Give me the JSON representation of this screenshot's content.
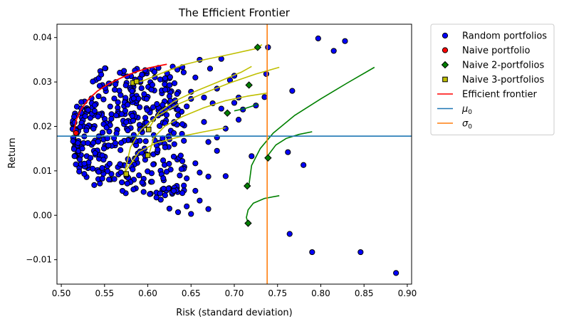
{
  "chart_data": {
    "type": "scatter",
    "title": "The Efficient Frontier",
    "xlabel": "Risk (standard deviation)",
    "ylabel": "Return",
    "xlim": [
      0.495,
      0.905
    ],
    "ylim": [
      -0.0155,
      0.043
    ],
    "xticks": [
      0.5,
      0.55,
      0.6,
      0.65,
      0.7,
      0.75,
      0.8,
      0.85,
      0.9
    ],
    "xtick_labels": [
      "0.50",
      "0.55",
      "0.60",
      "0.65",
      "0.70",
      "0.75",
      "0.80",
      "0.85",
      "0.90"
    ],
    "yticks": [
      -0.01,
      0.0,
      0.01,
      0.02,
      0.03,
      0.04
    ],
    "ytick_labels": [
      "−0.01",
      "0.00",
      "0.01",
      "0.02",
      "0.03",
      "0.04"
    ],
    "grid": false,
    "legend_position": "outside-top-right",
    "legend": [
      {
        "label": "Random portfolios",
        "kind": "circle",
        "color": "#0000ff"
      },
      {
        "label": "Naive portfolio",
        "kind": "circle",
        "color": "#ff0000"
      },
      {
        "label": "Naive 2-portfolios",
        "kind": "diamond",
        "color": "#008000"
      },
      {
        "label": "Naive 3-portfolios",
        "kind": "square",
        "color": "#bfbf00"
      },
      {
        "label": "Efficient frontier",
        "kind": "line",
        "color": "#ff0000"
      },
      {
        "label": "μ",
        "sub": "0",
        "kind": "line",
        "color": "#1f77b4"
      },
      {
        "label": "σ",
        "sub": "0",
        "kind": "line",
        "color": "#ff7f0e"
      }
    ],
    "mu0": 0.0178,
    "sigma0": 0.738,
    "colors": {
      "random": "#0000ff",
      "naive": "#ff0000",
      "naive2": "#008000",
      "naive3": "#bfbf00",
      "frontier": "#ff0000",
      "mu0": "#1f77b4",
      "sigma0": "#ff7f0e"
    },
    "random_portfolios": {
      "x": [
        0.797,
        0.815,
        0.828,
        0.739,
        0.767,
        0.78,
        0.764,
        0.79,
        0.846,
        0.887,
        0.762,
        0.737,
        0.725,
        0.735,
        0.705,
        0.695,
        0.7,
        0.685,
        0.672,
        0.68,
        0.66,
        0.655,
        0.665,
        0.7,
        0.71,
        0.69,
        0.705,
        0.72,
        0.68,
        0.67,
        0.68,
        0.69,
        0.67,
        0.655,
        0.66,
        0.645,
        0.64,
        0.63,
        0.62,
        0.625,
        0.63,
        0.64,
        0.635,
        0.645,
        0.65,
        0.65,
        0.675,
        0.685,
        0.665,
        0.655,
        0.64,
        0.66,
        0.67,
        0.645,
        0.65,
        0.635,
        0.625,
        0.615,
        0.61,
        0.62,
        0.63
      ],
      "y": [
        0.0398,
        0.037,
        0.0392,
        0.0378,
        0.028,
        0.0113,
        -0.0042,
        -0.0083,
        -0.0083,
        -0.013,
        0.0142,
        0.0318,
        0.0247,
        0.0266,
        0.0265,
        0.0304,
        0.0314,
        0.0352,
        0.033,
        0.0285,
        0.035,
        0.031,
        0.0265,
        0.0253,
        0.0238,
        0.0195,
        0.0215,
        0.0133,
        0.0175,
        0.0165,
        0.0145,
        0.0088,
        0.0087,
        0.0117,
        0.0096,
        0.0083,
        0.0122,
        0.0132,
        0.0153,
        0.0171,
        0.0185,
        0.0205,
        0.0225,
        0.0245,
        0.0278,
        0.0262,
        0.0252,
        0.024,
        0.021,
        0.0055,
        0.005,
        0.0033,
        0.0014,
        0.002,
        0.0003,
        0.0007,
        0.0015,
        0.0035,
        0.004,
        0.0045,
        0.0055
      ]
    },
    "naive_portfolio": {
      "x": 0.517,
      "y": 0.0185
    },
    "naive_2_portfolios": {
      "x": [
        0.727,
        0.717,
        0.692,
        0.739,
        0.715,
        0.716
      ],
      "y": [
        0.0378,
        0.0293,
        0.023,
        0.0129,
        0.0066,
        -0.0018
      ]
    },
    "naive_3_portfolios": {
      "x": [
        0.583,
        0.587,
        0.575,
        0.6,
        0.601
      ],
      "y": [
        0.0298,
        0.0301,
        0.0093,
        0.0135,
        0.0193
      ]
    },
    "efficient_frontier": {
      "x": [
        0.514,
        0.518,
        0.524,
        0.532,
        0.542,
        0.555,
        0.57,
        0.585,
        0.6,
        0.612,
        0.622
      ],
      "y": [
        0.0185,
        0.0218,
        0.0242,
        0.0262,
        0.028,
        0.0296,
        0.031,
        0.0322,
        0.0331,
        0.0336,
        0.034
      ]
    },
    "naive_2_frontiers": [
      {
        "x": [
          0.7,
          0.705,
          0.712,
          0.72,
          0.727
        ],
        "y": [
          0.0235,
          0.0237,
          0.024,
          0.0245,
          0.025
        ]
      },
      {
        "x": [
          0.716,
          0.714,
          0.716,
          0.722,
          0.735,
          0.752
        ],
        "y": [
          -0.0018,
          -0.0005,
          0.0012,
          0.0027,
          0.0038,
          0.0044
        ]
      },
      {
        "x": [
          0.717,
          0.72,
          0.73,
          0.745,
          0.77,
          0.8,
          0.83,
          0.862
        ],
        "y": [
          0.0068,
          0.0112,
          0.015,
          0.0185,
          0.0225,
          0.0262,
          0.0297,
          0.0333
        ]
      },
      {
        "x": [
          0.739,
          0.748,
          0.76,
          0.775,
          0.79
        ],
        "y": [
          0.0135,
          0.0158,
          0.0173,
          0.0182,
          0.0188
        ]
      }
    ],
    "naive_3_frontiers": [
      {
        "x": [
          0.583,
          0.595,
          0.615,
          0.64,
          0.665,
          0.695,
          0.725,
          0.732
        ],
        "y": [
          0.0298,
          0.0303,
          0.0319,
          0.0338,
          0.035,
          0.0362,
          0.0375,
          0.0384
        ]
      },
      {
        "x": [
          0.573,
          0.58,
          0.592,
          0.61,
          0.635,
          0.665,
          0.695,
          0.725,
          0.752
        ],
        "y": [
          0.0093,
          0.0153,
          0.0192,
          0.0222,
          0.025,
          0.0275,
          0.0298,
          0.0318,
          0.0333
        ]
      },
      {
        "x": [
          0.601,
          0.607,
          0.62,
          0.64,
          0.665,
          0.69,
          0.715,
          0.738
        ],
        "y": [
          0.0135,
          0.0175,
          0.0201,
          0.0222,
          0.0242,
          0.0258,
          0.0268,
          0.0275
        ]
      },
      {
        "x": [
          0.574,
          0.59,
          0.61,
          0.64,
          0.665,
          0.69
        ],
        "y": [
          0.0098,
          0.0143,
          0.0163,
          0.0178,
          0.0188,
          0.0197
        ]
      },
      {
        "x": [
          0.601,
          0.613,
          0.63,
          0.655,
          0.68,
          0.708,
          0.72
        ],
        "y": [
          0.0195,
          0.0232,
          0.0256,
          0.0279,
          0.0299,
          0.0322,
          0.0335
        ]
      }
    ]
  }
}
